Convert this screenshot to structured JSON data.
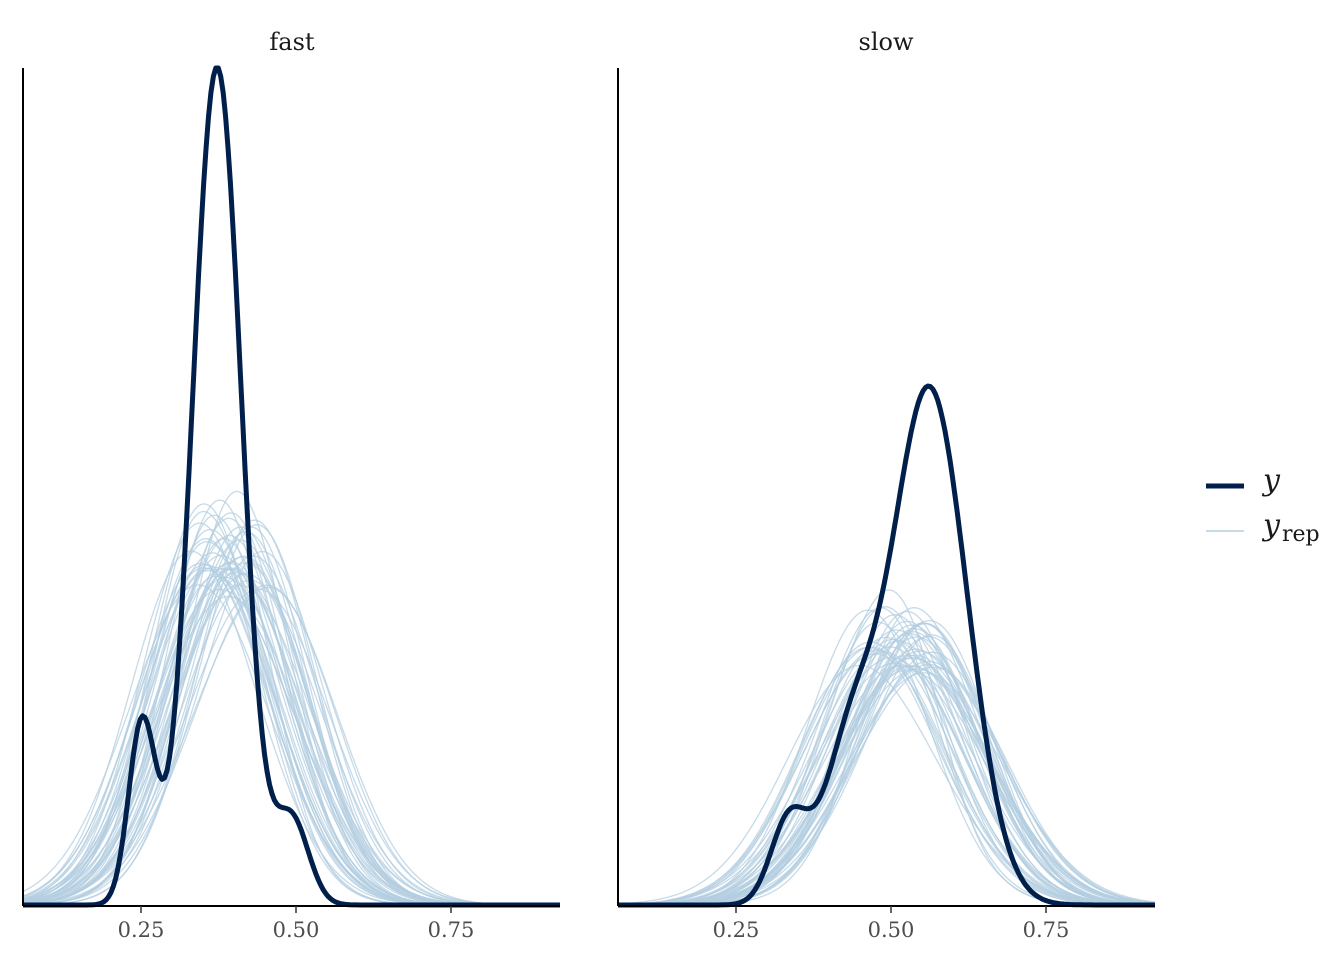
{
  "chart_data": {
    "type": "line",
    "subtype": "density overlay (posterior predictive check)",
    "facets": [
      {
        "title": "fast",
        "y_observed": {
          "mean": 0.365,
          "sd": 0.056
        },
        "y_rep_center_range": [
          0.34,
          0.44
        ]
      },
      {
        "title": "slow",
        "y_observed": {
          "mean": 0.545,
          "sd": 0.098
        },
        "y_rep_center_range": [
          0.46,
          0.56
        ]
      }
    ],
    "x_ticks": [
      "0.25",
      "0.50",
      "0.75"
    ],
    "xlim": [
      0.05,
      0.93
    ],
    "y_axis_labels": false,
    "grid": false,
    "legend": {
      "position": "right",
      "entries": [
        {
          "label": "y",
          "color": "#011f4b",
          "style": "thick"
        },
        {
          "label": "y",
          "subscript": "rep",
          "color": "#b3cde0",
          "style": "thin"
        }
      ]
    },
    "n_replicates": 50
  }
}
